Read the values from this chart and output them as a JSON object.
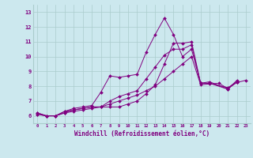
{
  "xlabel": "Windchill (Refroidissement éolien,°C)",
  "background_color": "#cce8ee",
  "grid_color": "#aacccc",
  "line_color": "#800080",
  "xlim": [
    -0.5,
    23.5
  ],
  "ylim": [
    5.5,
    13.5
  ],
  "yticks": [
    6,
    7,
    8,
    9,
    10,
    11,
    12,
    13
  ],
  "xticks": [
    0,
    1,
    2,
    3,
    4,
    5,
    6,
    7,
    8,
    9,
    10,
    11,
    12,
    13,
    14,
    15,
    16,
    17,
    18,
    19,
    20,
    21,
    22,
    23
  ],
  "series": [
    {
      "x": [
        0,
        1,
        2,
        3,
        4,
        5,
        6,
        7,
        8,
        9,
        10,
        11,
        12,
        13,
        14,
        15,
        16,
        17,
        18,
        19,
        21,
        22
      ],
      "y": [
        6.2,
        6.0,
        6.0,
        6.3,
        6.5,
        6.6,
        6.7,
        7.6,
        8.7,
        8.6,
        8.7,
        8.8,
        10.3,
        11.5,
        12.6,
        11.5,
        10.0,
        10.5,
        8.2,
        8.2,
        7.8,
        8.3
      ]
    },
    {
      "x": [
        0,
        1,
        2,
        3,
        4,
        5,
        6,
        7,
        8,
        9,
        10,
        11,
        12,
        13,
        14,
        15,
        16,
        17,
        18,
        19,
        21,
        22
      ],
      "y": [
        6.1,
        6.0,
        6.0,
        6.3,
        6.4,
        6.5,
        6.6,
        6.6,
        7.0,
        7.3,
        7.5,
        7.7,
        8.5,
        9.3,
        10.1,
        10.5,
        10.5,
        10.8,
        8.2,
        8.2,
        7.9,
        8.3
      ]
    },
    {
      "x": [
        0,
        1,
        2,
        3,
        4,
        5,
        6,
        7,
        8,
        9,
        10,
        11,
        12,
        13,
        14,
        15,
        16,
        17,
        18,
        19,
        21,
        22
      ],
      "y": [
        6.2,
        6.0,
        6.0,
        6.2,
        6.4,
        6.5,
        6.6,
        6.6,
        6.6,
        6.6,
        6.8,
        7.0,
        7.5,
        8.1,
        9.5,
        10.9,
        10.9,
        11.0,
        8.2,
        8.3,
        7.8,
        8.4
      ]
    },
    {
      "x": [
        0,
        1,
        2,
        3,
        4,
        5,
        6,
        7,
        8,
        9,
        10,
        11,
        12,
        13,
        14,
        15,
        16,
        17,
        18,
        19,
        20,
        21,
        22,
        23
      ],
      "y": [
        6.1,
        6.0,
        6.0,
        6.2,
        6.3,
        6.4,
        6.5,
        6.6,
        6.8,
        7.0,
        7.2,
        7.4,
        7.7,
        8.0,
        8.5,
        9.0,
        9.5,
        10.0,
        8.1,
        8.15,
        8.2,
        7.85,
        8.25,
        8.4
      ]
    }
  ]
}
